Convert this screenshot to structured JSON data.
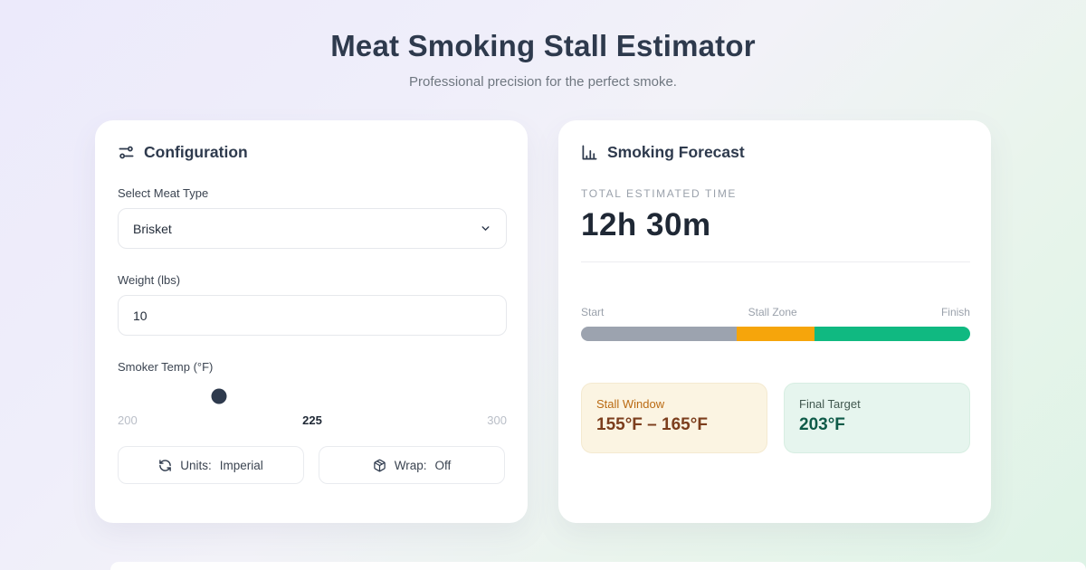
{
  "page": {
    "title": "Meat Smoking Stall Estimator",
    "subtitle": "Professional precision for the perfect smoke."
  },
  "config": {
    "heading": "Configuration",
    "meat_type": {
      "label": "Select Meat Type",
      "value": "Brisket"
    },
    "weight": {
      "label": "Weight (lbs)",
      "value": "10"
    },
    "smoker_temp": {
      "label": "Smoker Temp (°F)",
      "min": "200",
      "current": "225",
      "max": "300",
      "percent": 26,
      "thumb_color": "#2E3A4D"
    },
    "units_button": {
      "label": "Units:",
      "value": "Imperial"
    },
    "wrap_button": {
      "label": "Wrap:",
      "value": "Off"
    }
  },
  "forecast": {
    "heading": "Smoking Forecast",
    "total_label": "TOTAL ESTIMATED TIME",
    "total_value": "12h 30m",
    "progress": {
      "start_label": "Start",
      "stall_label": "Stall Zone",
      "finish_label": "Finish",
      "segments": [
        {
          "name": "start",
          "percent": 40,
          "color": "#9CA3AF"
        },
        {
          "name": "stall-zone",
          "percent": 20,
          "color": "#F6A50B"
        },
        {
          "name": "finish",
          "percent": 40,
          "color": "#10B981"
        }
      ]
    },
    "stall_window": {
      "label": "Stall Window",
      "value": "155°F – 165°F"
    },
    "final_target": {
      "label": "Final Target",
      "value": "203°F"
    }
  }
}
